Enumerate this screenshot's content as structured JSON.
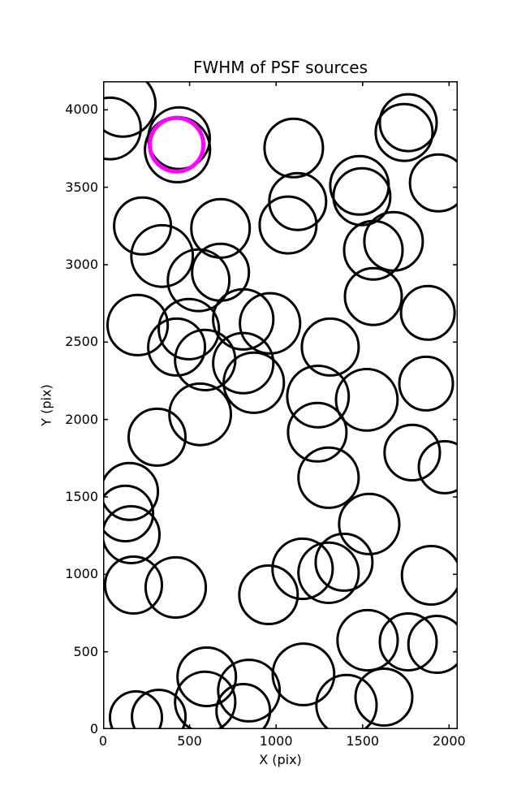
{
  "figure": {
    "background_color": "#FFFFFF",
    "text_color": "#000000"
  },
  "chart_data": {
    "type": "scatter",
    "title": "FWHM of PSF sources",
    "xlabel": "X (pix)",
    "ylabel": "Y (pix)",
    "xlim": [
      0,
      2050
    ],
    "ylim": [
      0,
      4185
    ],
    "xticks": [
      0,
      500,
      1000,
      1500,
      2000
    ],
    "yticks": [
      0,
      500,
      1000,
      1500,
      2000,
      2500,
      3000,
      3500,
      4000
    ],
    "grid": false,
    "legend": "none",
    "marker_style": {
      "shape": "circle-outline",
      "fill": "none",
      "stroke": "#000000",
      "stroke_width": 3
    },
    "highlight_style": {
      "shape": "circle-outline",
      "fill": "none",
      "stroke": "#FF00FF",
      "stroke_width": 5
    },
    "sources": [
      {
        "x": 115,
        "y": 4037,
        "r": 188
      },
      {
        "x": 40,
        "y": 3880,
        "r": 178
      },
      {
        "x": 439,
        "y": 3817,
        "r": 178
      },
      {
        "x": 430,
        "y": 3743,
        "r": 188
      },
      {
        "x": 1102,
        "y": 3754,
        "r": 169
      },
      {
        "x": 1764,
        "y": 3917,
        "r": 164
      },
      {
        "x": 1740,
        "y": 3854,
        "r": 164
      },
      {
        "x": 1938,
        "y": 3528,
        "r": 164
      },
      {
        "x": 1482,
        "y": 3512,
        "r": 169
      },
      {
        "x": 1496,
        "y": 3439,
        "r": 164
      },
      {
        "x": 228,
        "y": 3250,
        "r": 164
      },
      {
        "x": 341,
        "y": 3056,
        "r": 178
      },
      {
        "x": 679,
        "y": 3234,
        "r": 169
      },
      {
        "x": 679,
        "y": 2951,
        "r": 164
      },
      {
        "x": 552,
        "y": 2899,
        "r": 178
      },
      {
        "x": 1069,
        "y": 3256,
        "r": 164
      },
      {
        "x": 1125,
        "y": 3408,
        "r": 164
      },
      {
        "x": 200,
        "y": 2610,
        "r": 174
      },
      {
        "x": 496,
        "y": 2584,
        "r": 174
      },
      {
        "x": 425,
        "y": 2468,
        "r": 164
      },
      {
        "x": 810,
        "y": 2647,
        "r": 174
      },
      {
        "x": 965,
        "y": 2621,
        "r": 174
      },
      {
        "x": 1562,
        "y": 3093,
        "r": 169
      },
      {
        "x": 1679,
        "y": 3151,
        "r": 169
      },
      {
        "x": 1562,
        "y": 2794,
        "r": 164
      },
      {
        "x": 1877,
        "y": 2689,
        "r": 155
      },
      {
        "x": 1313,
        "y": 2468,
        "r": 164
      },
      {
        "x": 590,
        "y": 2384,
        "r": 174
      },
      {
        "x": 810,
        "y": 2364,
        "r": 174
      },
      {
        "x": 871,
        "y": 2238,
        "r": 174
      },
      {
        "x": 1867,
        "y": 2232,
        "r": 155
      },
      {
        "x": 561,
        "y": 2033,
        "r": 178
      },
      {
        "x": 312,
        "y": 1886,
        "r": 164
      },
      {
        "x": 1242,
        "y": 2148,
        "r": 178
      },
      {
        "x": 1524,
        "y": 2127,
        "r": 178
      },
      {
        "x": 1238,
        "y": 1918,
        "r": 169
      },
      {
        "x": 1787,
        "y": 1786,
        "r": 160
      },
      {
        "x": 1975,
        "y": 1692,
        "r": 150
      },
      {
        "x": 1303,
        "y": 1624,
        "r": 174
      },
      {
        "x": 153,
        "y": 1535,
        "r": 164
      },
      {
        "x": 129,
        "y": 1393,
        "r": 160
      },
      {
        "x": 162,
        "y": 1256,
        "r": 164
      },
      {
        "x": 1538,
        "y": 1325,
        "r": 174
      },
      {
        "x": 1153,
        "y": 1036,
        "r": 174
      },
      {
        "x": 1303,
        "y": 1010,
        "r": 174
      },
      {
        "x": 1393,
        "y": 1078,
        "r": 164
      },
      {
        "x": 956,
        "y": 868,
        "r": 169
      },
      {
        "x": 176,
        "y": 931,
        "r": 164
      },
      {
        "x": 420,
        "y": 915,
        "r": 174
      },
      {
        "x": 1896,
        "y": 994,
        "r": 169
      },
      {
        "x": 1529,
        "y": 574,
        "r": 174
      },
      {
        "x": 1764,
        "y": 564,
        "r": 164
      },
      {
        "x": 1929,
        "y": 548,
        "r": 164
      },
      {
        "x": 1158,
        "y": 354,
        "r": 178
      },
      {
        "x": 843,
        "y": 249,
        "r": 178
      },
      {
        "x": 810,
        "y": 118,
        "r": 155
      },
      {
        "x": 599,
        "y": 338,
        "r": 169
      },
      {
        "x": 590,
        "y": 176,
        "r": 174
      },
      {
        "x": 1407,
        "y": 155,
        "r": 174
      },
      {
        "x": 1623,
        "y": 207,
        "r": 164
      },
      {
        "x": 190,
        "y": 76,
        "r": 150
      },
      {
        "x": 322,
        "y": 81,
        "r": 155
      }
    ],
    "highlighted_source": {
      "x": 425,
      "y": 3775,
      "r": 155
    },
    "axes_style": {
      "spine_color": "#000000",
      "spine_width": 1.5,
      "tick_direction": "in",
      "tick_length": 6,
      "ticks_on_all_sides": true
    }
  }
}
